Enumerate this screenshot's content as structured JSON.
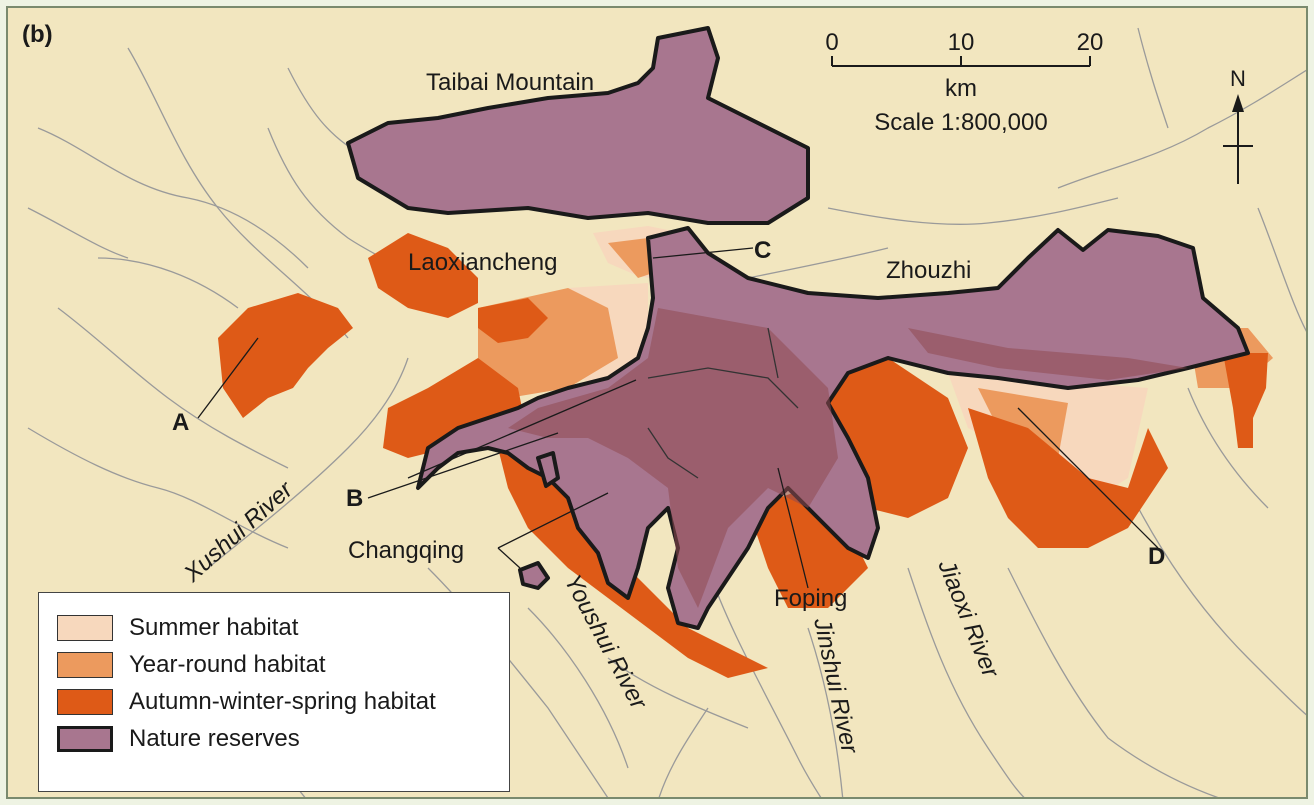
{
  "panel_label": "(b)",
  "scale_bar": {
    "ticks": [
      "0",
      "10",
      "20"
    ],
    "unit": "km",
    "scale_text": "Scale 1:800,000"
  },
  "north_label": "N",
  "places": {
    "taibai": "Taibai Mountain",
    "laoxiancheng": "Laoxiancheng",
    "zhouzhi": "Zhouzhi",
    "changqing": "Changqing",
    "foping": "Foping"
  },
  "rivers": {
    "xushui": "Xushui River",
    "youshui": "Youshui River",
    "jinshui": "Jinshui River",
    "jiaoxi": "Jiaoxi River"
  },
  "markers": {
    "a": "A",
    "b": "B",
    "c": "C",
    "d": "D"
  },
  "legend": [
    {
      "label": "Summer habitat",
      "color": "#f7d8bd"
    },
    {
      "label": "Year-round habitat",
      "color": "#ec9a5e"
    },
    {
      "label": "Autumn-winter-spring habitat",
      "color": "#de5a17"
    },
    {
      "label": "Nature reserves",
      "color": "#a8768f"
    }
  ]
}
